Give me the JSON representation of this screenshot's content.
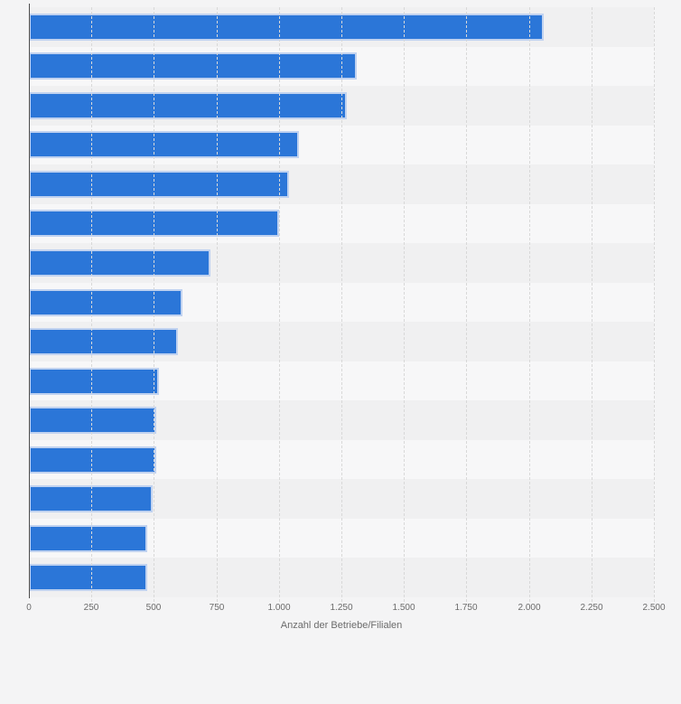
{
  "chart_data": {
    "type": "bar",
    "orientation": "horizontal",
    "title": "",
    "xlabel": "Anzahl der Betriebe/Filialen",
    "ylabel": "",
    "xlim": [
      0,
      2500
    ],
    "grid": "vertical-dashed",
    "legend": "none",
    "category_labels_visible": false,
    "values": [
      2060,
      1310,
      1270,
      1080,
      1040,
      1000,
      725,
      615,
      595,
      520,
      510,
      510,
      495,
      475,
      475
    ],
    "x_tick_values": [
      0,
      250,
      500,
      750,
      1000,
      1250,
      1500,
      1750,
      2000,
      2250,
      2500
    ],
    "x_ticks": [
      "0",
      "250",
      "500",
      "750",
      "1.000",
      "1.250",
      "1.500",
      "1.750",
      "2.000",
      "2.250",
      "2.500"
    ]
  },
  "colors": {
    "page_background": "#f4f4f5",
    "row_stripe_dark": "#f0f0f1",
    "row_stripe_light": "#f7f7f8",
    "gridline": "#d8d8d8",
    "axis_line": "#4d4d4d",
    "bar_fill": "#2b76d8",
    "bar_border": "#c0d2f0",
    "tick_label": "#6b6b6b"
  }
}
